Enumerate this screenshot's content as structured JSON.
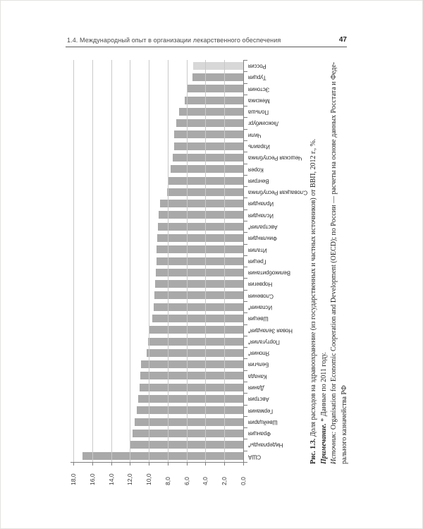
{
  "page": {
    "header_title": "1.4. Международный опыт в организации лекарственного обеспечения",
    "page_number": "47"
  },
  "chart_data": {
    "type": "bar",
    "note": "column chart rotated 90° CCW to fit portrait book page; bars grow leftward from the right-hand baseline",
    "title": "Доля расходов на здравоохранение (из государственных и частных источников) от ВВП, 2012 г., %",
    "value_axis": {
      "min": 0,
      "max": 18,
      "step": 2,
      "tick_labels": [
        "18,0",
        "16,0",
        "14,0",
        "12,0",
        "10,0",
        "8,0",
        "6,0",
        "4,0",
        "2,0",
        "0,0"
      ],
      "tick_values": [
        18,
        16,
        14,
        12,
        10,
        8,
        6,
        4,
        2,
        0
      ],
      "grid": true
    },
    "categories": [
      "Россия",
      "Турция",
      "Эстония",
      "Мексика",
      "Польша",
      "Люксембург",
      "Чили",
      "Израиль",
      "Чешская Республика",
      "Корея",
      "Венгрия",
      "Словацкая Республика",
      "Ирландия",
      "Исландия",
      "Австралия*",
      "Финляндия",
      "Италия",
      "Греция",
      "Великобритания",
      "Норвегия",
      "Словения",
      "Испания*",
      "Швеция",
      "Новая Зеландия*",
      "Португалия*",
      "Япония*",
      "Бельгия",
      "Канада",
      "Дания",
      "Австрия",
      "Германия",
      "Швейцария",
      "Франция",
      "Нидерланды*",
      "США"
    ],
    "values": [
      5.3,
      5.4,
      5.9,
      6.2,
      6.8,
      7.1,
      7.3,
      7.35,
      7.5,
      7.7,
      8.0,
      8.1,
      8.8,
      9.0,
      9.05,
      9.1,
      9.15,
      9.2,
      9.25,
      9.3,
      9.4,
      9.5,
      9.6,
      10.0,
      10.1,
      10.2,
      10.8,
      10.9,
      11.0,
      11.1,
      11.3,
      11.5,
      11.7,
      12.0,
      17.0
    ],
    "bar_color": "#a9a9a9",
    "highlight": {
      "category": "Россия",
      "color": "#d8d8d8"
    },
    "gridline_color": "#c9c9c9",
    "axis_color": "#7f7f7f"
  },
  "caption": {
    "lines": [
      {
        "prefix": "Рис. 1.3.",
        "prefix_style": "bold",
        "text": " Доля расходов на здравоохранение (из государственных и частных источников) от ВВП, 2012 г., %."
      },
      {
        "prefix": "Примечание.",
        "prefix_style": "bold-italic",
        "text": " * Данные по 2011 году."
      },
      {
        "prefix": "Источник:",
        "prefix_style": "italic",
        "text": " Organisation for Economic Cooperation and Development (OECD); по России — расчеты на основе данных Росстата и Феде-"
      },
      {
        "prefix": "",
        "prefix_style": "none",
        "text": "рального казначейства РФ"
      }
    ]
  }
}
